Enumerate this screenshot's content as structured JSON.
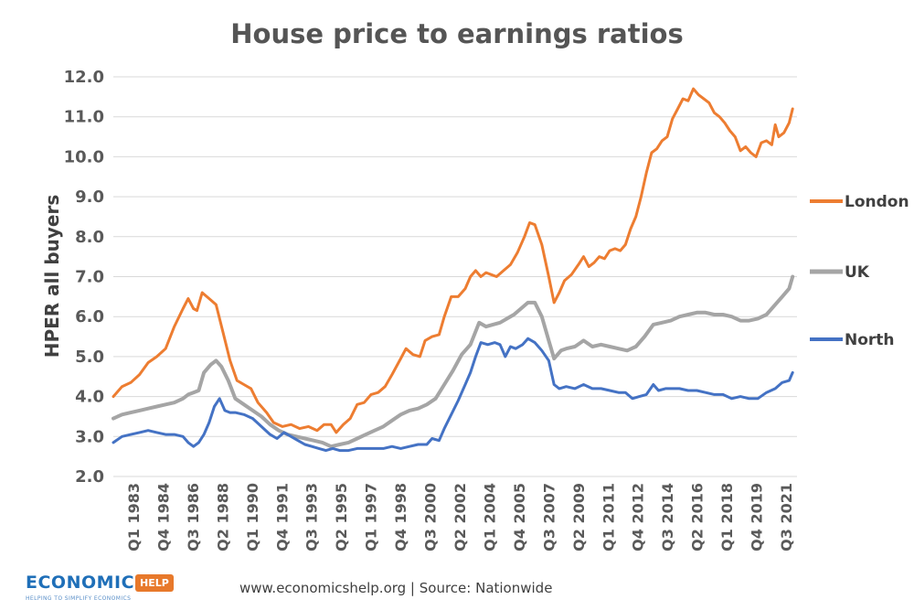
{
  "chart_data": {
    "type": "line",
    "title": "House price to earnings ratios",
    "xlabel": "",
    "ylabel": "HPER all buyers",
    "ylim": [
      2.0,
      12.0
    ],
    "yticks": [
      "2.0",
      "3.0",
      "4.0",
      "5.0",
      "6.0",
      "7.0",
      "8.0",
      "9.0",
      "10.0",
      "11.0",
      "12.0"
    ],
    "x_tick_labels": [
      "Q1 1983",
      "Q4 1984",
      "Q3 1986",
      "Q2 1988",
      "Q1 1990",
      "Q4 1991",
      "Q3 1993",
      "Q2 1995",
      "Q1 1997",
      "Q4 1998",
      "Q3 2000",
      "Q2 2002",
      "Q1 2004",
      "Q4 2005",
      "Q3 2007",
      "Q2 2009",
      "Q1 2011",
      "Q4 2012",
      "Q3 2014",
      "Q2 2016",
      "Q1 2018",
      "Q4 2019",
      "Q3 2021"
    ],
    "x_start": 1983.0,
    "x_end": 2022.25,
    "grid": true,
    "legend_position": "right",
    "series": [
      {
        "name": "London",
        "color": "#ed7d31",
        "points": [
          [
            1983.0,
            4.0
          ],
          [
            1983.5,
            4.25
          ],
          [
            1984.0,
            4.35
          ],
          [
            1984.5,
            4.55
          ],
          [
            1985.0,
            4.85
          ],
          [
            1985.5,
            5.0
          ],
          [
            1986.0,
            5.2
          ],
          [
            1986.5,
            5.75
          ],
          [
            1987.0,
            6.2
          ],
          [
            1987.3,
            6.45
          ],
          [
            1987.6,
            6.2
          ],
          [
            1987.8,
            6.15
          ],
          [
            1988.1,
            6.6
          ],
          [
            1988.5,
            6.45
          ],
          [
            1988.9,
            6.3
          ],
          [
            1989.3,
            5.6
          ],
          [
            1989.7,
            4.9
          ],
          [
            1990.1,
            4.4
          ],
          [
            1990.5,
            4.3
          ],
          [
            1990.9,
            4.2
          ],
          [
            1991.3,
            3.85
          ],
          [
            1991.8,
            3.6
          ],
          [
            1992.2,
            3.35
          ],
          [
            1992.7,
            3.25
          ],
          [
            1993.2,
            3.3
          ],
          [
            1993.7,
            3.2
          ],
          [
            1994.2,
            3.25
          ],
          [
            1994.7,
            3.15
          ],
          [
            1995.1,
            3.3
          ],
          [
            1995.5,
            3.3
          ],
          [
            1995.8,
            3.1
          ],
          [
            1996.2,
            3.3
          ],
          [
            1996.6,
            3.45
          ],
          [
            1997.0,
            3.8
          ],
          [
            1997.4,
            3.85
          ],
          [
            1997.8,
            4.05
          ],
          [
            1998.2,
            4.1
          ],
          [
            1998.6,
            4.25
          ],
          [
            1999.0,
            4.55
          ],
          [
            1999.5,
            4.95
          ],
          [
            1999.8,
            5.2
          ],
          [
            2000.2,
            5.05
          ],
          [
            2000.6,
            5.0
          ],
          [
            2000.9,
            5.4
          ],
          [
            2001.3,
            5.5
          ],
          [
            2001.7,
            5.55
          ],
          [
            2002.0,
            6.0
          ],
          [
            2002.4,
            6.5
          ],
          [
            2002.8,
            6.5
          ],
          [
            2003.2,
            6.7
          ],
          [
            2003.5,
            7.0
          ],
          [
            2003.8,
            7.15
          ],
          [
            2004.1,
            7.0
          ],
          [
            2004.4,
            7.1
          ],
          [
            2004.7,
            7.05
          ],
          [
            2005.0,
            7.0
          ],
          [
            2005.4,
            7.15
          ],
          [
            2005.8,
            7.3
          ],
          [
            2006.2,
            7.6
          ],
          [
            2006.6,
            8.0
          ],
          [
            2006.9,
            8.35
          ],
          [
            2007.2,
            8.3
          ],
          [
            2007.6,
            7.8
          ],
          [
            2008.0,
            7.0
          ],
          [
            2008.3,
            6.35
          ],
          [
            2008.6,
            6.6
          ],
          [
            2008.9,
            6.9
          ],
          [
            2009.3,
            7.05
          ],
          [
            2009.7,
            7.3
          ],
          [
            2010.0,
            7.5
          ],
          [
            2010.3,
            7.25
          ],
          [
            2010.6,
            7.35
          ],
          [
            2010.9,
            7.5
          ],
          [
            2011.2,
            7.45
          ],
          [
            2011.5,
            7.65
          ],
          [
            2011.8,
            7.7
          ],
          [
            2012.1,
            7.65
          ],
          [
            2012.4,
            7.8
          ],
          [
            2012.7,
            8.2
          ],
          [
            2013.0,
            8.5
          ],
          [
            2013.3,
            9.0
          ],
          [
            2013.6,
            9.6
          ],
          [
            2013.9,
            10.1
          ],
          [
            2014.2,
            10.2
          ],
          [
            2014.5,
            10.4
          ],
          [
            2014.8,
            10.5
          ],
          [
            2015.1,
            10.95
          ],
          [
            2015.4,
            11.2
          ],
          [
            2015.7,
            11.45
          ],
          [
            2016.0,
            11.4
          ],
          [
            2016.3,
            11.7
          ],
          [
            2016.6,
            11.55
          ],
          [
            2016.9,
            11.45
          ],
          [
            2017.2,
            11.35
          ],
          [
            2017.5,
            11.1
          ],
          [
            2017.8,
            11.0
          ],
          [
            2018.1,
            10.85
          ],
          [
            2018.4,
            10.65
          ],
          [
            2018.7,
            10.5
          ],
          [
            2019.0,
            10.15
          ],
          [
            2019.3,
            10.25
          ],
          [
            2019.6,
            10.1
          ],
          [
            2019.9,
            10.0
          ],
          [
            2020.2,
            10.35
          ],
          [
            2020.5,
            10.4
          ],
          [
            2020.8,
            10.3
          ],
          [
            2021.0,
            10.8
          ],
          [
            2021.2,
            10.5
          ],
          [
            2021.5,
            10.6
          ],
          [
            2021.8,
            10.85
          ],
          [
            2022.0,
            11.2
          ]
        ]
      },
      {
        "name": "UK",
        "color": "#a5a5a5",
        "points": [
          [
            1983.0,
            3.45
          ],
          [
            1983.5,
            3.55
          ],
          [
            1984.0,
            3.6
          ],
          [
            1984.5,
            3.65
          ],
          [
            1985.0,
            3.7
          ],
          [
            1985.5,
            3.75
          ],
          [
            1986.0,
            3.8
          ],
          [
            1986.5,
            3.85
          ],
          [
            1987.0,
            3.95
          ],
          [
            1987.3,
            4.05
          ],
          [
            1987.6,
            4.1
          ],
          [
            1987.9,
            4.15
          ],
          [
            1988.2,
            4.6
          ],
          [
            1988.6,
            4.8
          ],
          [
            1988.9,
            4.9
          ],
          [
            1989.2,
            4.75
          ],
          [
            1989.6,
            4.4
          ],
          [
            1990.0,
            3.95
          ],
          [
            1990.5,
            3.8
          ],
          [
            1991.0,
            3.65
          ],
          [
            1991.5,
            3.5
          ],
          [
            1992.0,
            3.3
          ],
          [
            1992.5,
            3.15
          ],
          [
            1993.0,
            3.05
          ],
          [
            1993.5,
            3.0
          ],
          [
            1994.0,
            2.95
          ],
          [
            1994.5,
            2.9
          ],
          [
            1995.0,
            2.85
          ],
          [
            1995.5,
            2.75
          ],
          [
            1996.0,
            2.8
          ],
          [
            1996.5,
            2.85
          ],
          [
            1997.0,
            2.95
          ],
          [
            1997.5,
            3.05
          ],
          [
            1998.0,
            3.15
          ],
          [
            1998.5,
            3.25
          ],
          [
            1999.0,
            3.4
          ],
          [
            1999.5,
            3.55
          ],
          [
            2000.0,
            3.65
          ],
          [
            2000.5,
            3.7
          ],
          [
            2001.0,
            3.8
          ],
          [
            2001.5,
            3.95
          ],
          [
            2002.0,
            4.3
          ],
          [
            2002.5,
            4.65
          ],
          [
            2003.0,
            5.05
          ],
          [
            2003.5,
            5.3
          ],
          [
            2004.0,
            5.85
          ],
          [
            2004.4,
            5.75
          ],
          [
            2004.8,
            5.8
          ],
          [
            2005.2,
            5.85
          ],
          [
            2005.6,
            5.95
          ],
          [
            2006.0,
            6.05
          ],
          [
            2006.4,
            6.2
          ],
          [
            2006.8,
            6.35
          ],
          [
            2007.2,
            6.35
          ],
          [
            2007.6,
            6.0
          ],
          [
            2008.0,
            5.4
          ],
          [
            2008.3,
            4.95
          ],
          [
            2008.7,
            5.15
          ],
          [
            2009.0,
            5.2
          ],
          [
            2009.5,
            5.25
          ],
          [
            2010.0,
            5.4
          ],
          [
            2010.5,
            5.25
          ],
          [
            2011.0,
            5.3
          ],
          [
            2011.5,
            5.25
          ],
          [
            2012.0,
            5.2
          ],
          [
            2012.5,
            5.15
          ],
          [
            2013.0,
            5.25
          ],
          [
            2013.5,
            5.5
          ],
          [
            2014.0,
            5.8
          ],
          [
            2014.5,
            5.85
          ],
          [
            2015.0,
            5.9
          ],
          [
            2015.5,
            6.0
          ],
          [
            2016.0,
            6.05
          ],
          [
            2016.5,
            6.1
          ],
          [
            2017.0,
            6.1
          ],
          [
            2017.5,
            6.05
          ],
          [
            2018.0,
            6.05
          ],
          [
            2018.5,
            6.0
          ],
          [
            2019.0,
            5.9
          ],
          [
            2019.5,
            5.9
          ],
          [
            2020.0,
            5.95
          ],
          [
            2020.5,
            6.05
          ],
          [
            2021.0,
            6.3
          ],
          [
            2021.4,
            6.5
          ],
          [
            2021.8,
            6.7
          ],
          [
            2022.0,
            7.0
          ]
        ]
      },
      {
        "name": "North",
        "color": "#4472c4",
        "points": [
          [
            1983.0,
            2.85
          ],
          [
            1983.5,
            3.0
          ],
          [
            1984.0,
            3.05
          ],
          [
            1984.5,
            3.1
          ],
          [
            1985.0,
            3.15
          ],
          [
            1985.5,
            3.1
          ],
          [
            1986.0,
            3.05
          ],
          [
            1986.5,
            3.05
          ],
          [
            1987.0,
            3.0
          ],
          [
            1987.3,
            2.85
          ],
          [
            1987.6,
            2.75
          ],
          [
            1987.9,
            2.85
          ],
          [
            1988.2,
            3.05
          ],
          [
            1988.5,
            3.35
          ],
          [
            1988.8,
            3.75
          ],
          [
            1989.1,
            3.95
          ],
          [
            1989.4,
            3.65
          ],
          [
            1989.7,
            3.6
          ],
          [
            1990.0,
            3.6
          ],
          [
            1990.5,
            3.55
          ],
          [
            1991.0,
            3.45
          ],
          [
            1991.5,
            3.25
          ],
          [
            1992.0,
            3.05
          ],
          [
            1992.4,
            2.95
          ],
          [
            1992.8,
            3.1
          ],
          [
            1993.2,
            3.0
          ],
          [
            1993.6,
            2.9
          ],
          [
            1994.0,
            2.8
          ],
          [
            1994.4,
            2.75
          ],
          [
            1994.8,
            2.7
          ],
          [
            1995.2,
            2.65
          ],
          [
            1995.6,
            2.7
          ],
          [
            1996.0,
            2.65
          ],
          [
            1996.5,
            2.65
          ],
          [
            1997.0,
            2.7
          ],
          [
            1997.5,
            2.7
          ],
          [
            1998.0,
            2.7
          ],
          [
            1998.5,
            2.7
          ],
          [
            1999.0,
            2.75
          ],
          [
            1999.5,
            2.7
          ],
          [
            2000.0,
            2.75
          ],
          [
            2000.5,
            2.8
          ],
          [
            2001.0,
            2.8
          ],
          [
            2001.3,
            2.95
          ],
          [
            2001.7,
            2.9
          ],
          [
            2002.0,
            3.2
          ],
          [
            2002.4,
            3.55
          ],
          [
            2002.8,
            3.9
          ],
          [
            2003.2,
            4.3
          ],
          [
            2003.5,
            4.6
          ],
          [
            2003.8,
            5.0
          ],
          [
            2004.1,
            5.35
          ],
          [
            2004.5,
            5.3
          ],
          [
            2004.9,
            5.35
          ],
          [
            2005.2,
            5.3
          ],
          [
            2005.5,
            5.0
          ],
          [
            2005.8,
            5.25
          ],
          [
            2006.1,
            5.2
          ],
          [
            2006.5,
            5.3
          ],
          [
            2006.8,
            5.45
          ],
          [
            2007.2,
            5.35
          ],
          [
            2007.6,
            5.15
          ],
          [
            2008.0,
            4.9
          ],
          [
            2008.3,
            4.3
          ],
          [
            2008.6,
            4.2
          ],
          [
            2009.0,
            4.25
          ],
          [
            2009.5,
            4.2
          ],
          [
            2010.0,
            4.3
          ],
          [
            2010.5,
            4.2
          ],
          [
            2011.0,
            4.2
          ],
          [
            2011.5,
            4.15
          ],
          [
            2012.0,
            4.1
          ],
          [
            2012.4,
            4.1
          ],
          [
            2012.8,
            3.95
          ],
          [
            2013.2,
            4.0
          ],
          [
            2013.6,
            4.05
          ],
          [
            2014.0,
            4.3
          ],
          [
            2014.3,
            4.15
          ],
          [
            2014.7,
            4.2
          ],
          [
            2015.0,
            4.2
          ],
          [
            2015.5,
            4.2
          ],
          [
            2016.0,
            4.15
          ],
          [
            2016.5,
            4.15
          ],
          [
            2017.0,
            4.1
          ],
          [
            2017.5,
            4.05
          ],
          [
            2018.0,
            4.05
          ],
          [
            2018.5,
            3.95
          ],
          [
            2019.0,
            4.0
          ],
          [
            2019.5,
            3.95
          ],
          [
            2020.0,
            3.95
          ],
          [
            2020.5,
            4.1
          ],
          [
            2021.0,
            4.2
          ],
          [
            2021.4,
            4.35
          ],
          [
            2021.8,
            4.4
          ],
          [
            2022.0,
            4.6
          ]
        ]
      }
    ]
  },
  "footer": {
    "source": "www.economicshelp.org  |  Source: Nationwide"
  },
  "logo": {
    "main": "ECONOMICS",
    "badge": "HELP",
    "tagline": "HELPING TO SIMPLIFY ECONOMICS"
  }
}
